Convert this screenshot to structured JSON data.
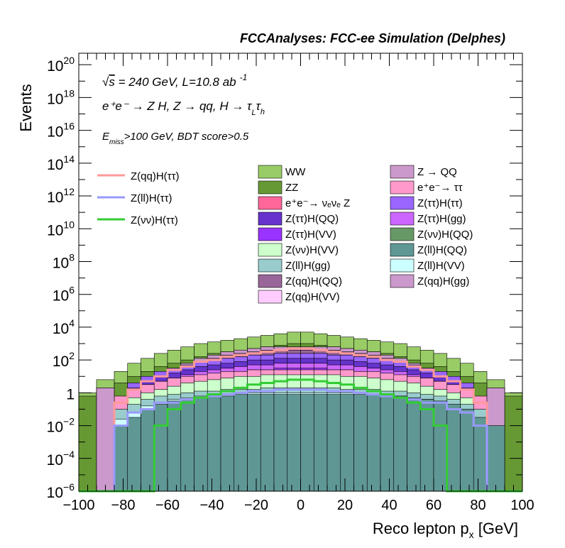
{
  "header": {
    "title": "FCCAnalyses: FCC-ee Simulation (Delphes)"
  },
  "annotations": {
    "energy_prefix": "√",
    "energy_s": "s",
    "energy_text": " = 240 GeV, L=10.8 ab",
    "energy_exp": "-1",
    "process": "e⁺e⁻ → Z H, Z → qq, H → τ",
    "tau_l_sub": "L",
    "tau_char": "τ",
    "tau_h_sub": "h",
    "cut_E": "E",
    "cut_sub": "miss",
    "cut_text": ">100 GeV, BDT score>0.5"
  },
  "chart_data": {
    "type": "histogram",
    "xlabel": "Reco lepton p",
    "xlabel_sub": "x",
    "xlabel_unit": " [GeV]",
    "ylabel": "Events",
    "xlim": [
      -100,
      100
    ],
    "ylim_log10": [
      -6,
      20.7
    ],
    "log_y": true,
    "x_ticks": [
      "−100",
      "−80",
      "−60",
      "−40",
      "−20",
      "0",
      "20",
      "40",
      "60",
      "80",
      "100"
    ],
    "x_tick_values": [
      -100,
      -80,
      -60,
      -40,
      -20,
      0,
      20,
      40,
      60,
      80,
      100
    ],
    "y_ticks": [
      {
        "value": -6,
        "base": "10",
        "exp": "−6"
      },
      {
        "value": -4,
        "base": "10",
        "exp": "−4"
      },
      {
        "value": -2,
        "base": "10",
        "exp": "−2"
      },
      {
        "value": 0,
        "base": "1",
        "exp": ""
      },
      {
        "value": 2,
        "base": "10",
        "exp": "2"
      },
      {
        "value": 4,
        "base": "10",
        "exp": "4"
      },
      {
        "value": 6,
        "base": "10",
        "exp": "6"
      },
      {
        "value": 8,
        "base": "10",
        "exp": "8"
      },
      {
        "value": 10,
        "base": "10",
        "exp": "10"
      },
      {
        "value": 12,
        "base": "10",
        "exp": "12"
      },
      {
        "value": 14,
        "base": "10",
        "exp": "14"
      },
      {
        "value": 16,
        "base": "10",
        "exp": "16"
      },
      {
        "value": 18,
        "base": "10",
        "exp": "18"
      },
      {
        "value": 20,
        "base": "10",
        "exp": "20"
      }
    ],
    "bin_edges": [
      -100,
      -92,
      -84,
      -78,
      -72,
      -66,
      -60,
      -54,
      -48,
      -42,
      -36,
      -30,
      -24,
      -18,
      -12,
      -6,
      0,
      6,
      12,
      18,
      24,
      30,
      36,
      42,
      48,
      54,
      60,
      66,
      72,
      78,
      84,
      92,
      100
    ],
    "stack_backgrounds": [
      {
        "name": "Z(ll)H(QQ)",
        "color": "#5f9795",
        "log10": [
          -6,
          -6,
          -2,
          -1.5,
          -1,
          -0.7,
          -0.5,
          -0.4,
          -0.3,
          -0.2,
          -0.2,
          -0.1,
          -0.1,
          -0.1,
          -0.1,
          -0.1,
          -0.1,
          -0.1,
          -0.1,
          -0.1,
          -0.1,
          -0.1,
          -0.2,
          -0.2,
          -0.3,
          -0.4,
          -0.5,
          -0.7,
          -1,
          -1.5,
          -2,
          -6
        ]
      },
      {
        "name": "e⁺e⁻→ νₑνₑ Z",
        "color": "#ff6699",
        "log10": [
          -6,
          -6,
          -6,
          -6,
          -6,
          -6,
          -6,
          -6,
          -6,
          -6,
          -6,
          -6,
          -0.5,
          -0.4,
          -0.3,
          -0.3,
          -0.3,
          -0.3,
          -0.4,
          -0.5,
          -6,
          -6,
          -6,
          -6,
          -6,
          -6,
          -6,
          -6,
          -6,
          -6,
          -6,
          -6
        ]
      },
      {
        "name": "Z(νν)H(QQ)",
        "color": "#669966",
        "log10": [
          -6,
          -6,
          -6,
          -6,
          -6,
          -6,
          -6,
          -6,
          -6,
          -2,
          -1.5,
          -1.2,
          -1,
          -0.9,
          -0.8,
          -0.8,
          -0.8,
          -0.8,
          -0.9,
          -1,
          -1.2,
          -1.5,
          -2,
          -6,
          -6,
          -6,
          -6,
          -6,
          -6,
          -6,
          -6,
          -6
        ]
      },
      {
        "name": "Z(ll)H(VV)",
        "color": "#ccffff",
        "log10": [
          -6,
          -6,
          -1.6,
          -1.2,
          -0.8,
          -0.6,
          -0.4,
          -0.3,
          -0.2,
          -0.1,
          -0.1,
          0,
          0,
          0,
          0,
          0,
          0,
          0,
          0,
          0,
          0,
          -0.1,
          -0.1,
          -0.2,
          -0.3,
          -0.4,
          -0.6,
          -0.8,
          -1.2,
          -1.6,
          -6,
          -6
        ]
      },
      {
        "name": "Z(ll)H(gg)",
        "color": "#99cccc",
        "log10": [
          -6,
          -6,
          -1,
          -0.7,
          -0.4,
          -0.2,
          -0.1,
          0,
          0.1,
          0.1,
          0.2,
          0.2,
          0.2,
          0.3,
          0.3,
          0.3,
          0.3,
          0.3,
          0.3,
          0.2,
          0.2,
          0.2,
          0.1,
          0.1,
          0,
          -0.1,
          -0.2,
          -0.4,
          -0.7,
          -1,
          -6,
          -6
        ]
      },
      {
        "name": "Z → QQ",
        "color": "#cc99cc",
        "log10": [
          -6,
          0.3,
          -6,
          -6,
          -6,
          -6,
          -6,
          -6,
          -6,
          -6,
          -6,
          -6,
          -6,
          -6,
          -6,
          -2,
          -2,
          -6,
          -6,
          -6,
          -6,
          -6,
          -6,
          -6,
          -6,
          -6,
          -6,
          -6,
          -6,
          -6,
          0.3,
          -6
        ]
      },
      {
        "name": "Z(νν)H(VV)",
        "color": "#ccffcc",
        "log10": [
          -6,
          -6,
          -6,
          -0.3,
          0,
          0.2,
          0.4,
          0.6,
          0.7,
          0.8,
          0.9,
          1,
          1,
          1.1,
          1.1,
          1.1,
          1.1,
          1.1,
          1.1,
          1,
          1,
          0.9,
          0.8,
          0.7,
          0.6,
          0.4,
          0.2,
          0,
          -0.3,
          -6,
          -6,
          -6
        ]
      },
      {
        "name": "e⁺e⁻→ ττ",
        "color": "#ff99cc",
        "log10": [
          -6,
          -6,
          -0.2,
          0.2,
          0.5,
          0.7,
          0.9,
          1,
          1.1,
          1.2,
          1.3,
          1.3,
          1.4,
          1.4,
          1.4,
          1.4,
          1.4,
          1.4,
          1.4,
          1.4,
          1.3,
          1.3,
          1.2,
          1.1,
          1,
          0.9,
          0.7,
          0.5,
          0.2,
          -0.2,
          -6,
          -6
        ]
      },
      {
        "name": "Z(ττ)H(VV)",
        "color": "#9933ff",
        "log10": [
          -6,
          -6,
          -6,
          -0.5,
          0,
          0.3,
          0.6,
          0.8,
          1,
          1.1,
          1.2,
          1.3,
          1.4,
          1.4,
          1.5,
          1.5,
          1.5,
          1.5,
          1.4,
          1.4,
          1.3,
          1.2,
          1.1,
          1,
          0.8,
          0.6,
          0.3,
          0,
          -0.5,
          -6,
          -6,
          -6
        ]
      },
      {
        "name": "Z(ττ)H(gg)",
        "color": "#cc66ff",
        "log10": [
          -6,
          -6,
          -6,
          0,
          0.4,
          0.7,
          0.9,
          1.1,
          1.3,
          1.4,
          1.5,
          1.6,
          1.7,
          1.7,
          1.8,
          1.8,
          1.8,
          1.8,
          1.7,
          1.7,
          1.6,
          1.5,
          1.4,
          1.3,
          1.1,
          0.9,
          0.7,
          0.4,
          0,
          -6,
          -6,
          -6
        ]
      },
      {
        "name": "Z(ττ)H(QQ)",
        "color": "#6633cc",
        "log10": [
          -6,
          -6,
          -6,
          0.3,
          0.7,
          1,
          1.2,
          1.4,
          1.6,
          1.7,
          1.8,
          1.9,
          2,
          2,
          2.1,
          2.1,
          2.1,
          2.1,
          2,
          2,
          1.9,
          1.8,
          1.7,
          1.6,
          1.4,
          1.2,
          1,
          0.7,
          0.3,
          -6,
          -6,
          -6
        ]
      },
      {
        "name": "Z(ττ)H(ττ)",
        "color": "#9966ff",
        "log10": [
          -6,
          -6,
          -6,
          0.6,
          1,
          1.3,
          1.5,
          1.7,
          1.9,
          2,
          2.1,
          2.2,
          2.3,
          2.3,
          2.4,
          2.4,
          2.4,
          2.4,
          2.3,
          2.3,
          2.2,
          2.1,
          2,
          1.9,
          1.7,
          1.5,
          1.3,
          1,
          0.6,
          -6,
          -6,
          -6
        ]
      },
      {
        "name": "Z(qq)H(VV)",
        "color": "#ffccff",
        "log10": [
          -6,
          -6,
          -6,
          -6,
          -6,
          0.5,
          1,
          1.3,
          1.6,
          1.8,
          2,
          2.1,
          2.2,
          2.3,
          2.3,
          2.3,
          2.3,
          2.3,
          2.3,
          2.2,
          2.1,
          2,
          1.8,
          1.6,
          1.3,
          1,
          0.5,
          -6,
          -6,
          -6,
          -6,
          -6
        ]
      },
      {
        "name": "Z(qq)H(QQ)",
        "color": "#996699",
        "log10": [
          -6,
          -6,
          -6,
          -6,
          -6,
          0.8,
          1.3,
          1.6,
          1.9,
          2.1,
          2.3,
          2.4,
          2.5,
          2.6,
          2.6,
          2.6,
          2.6,
          2.6,
          2.6,
          2.5,
          2.4,
          2.3,
          2.1,
          1.9,
          1.6,
          1.3,
          0.8,
          -6,
          -6,
          -6,
          -6,
          -6
        ]
      },
      {
        "name": "Z(qq)H(gg)",
        "color": "#cc99cc",
        "log10": [
          -6,
          -6,
          -6,
          -6,
          -6,
          1,
          1.5,
          1.8,
          2.1,
          2.3,
          2.5,
          2.6,
          2.7,
          2.8,
          2.8,
          2.8,
          2.8,
          2.8,
          2.8,
          2.7,
          2.6,
          2.5,
          2.3,
          2.1,
          1.8,
          1.5,
          1,
          -6,
          -6,
          -6,
          -6,
          -6
        ]
      },
      {
        "name": "ZZ",
        "color": "#669933",
        "log10": [
          -0.2,
          0.3,
          0.6,
          1,
          1.3,
          1.6,
          1.8,
          2,
          2.2,
          2.4,
          2.5,
          2.6,
          2.7,
          2.8,
          2.9,
          3,
          3,
          2.9,
          2.8,
          2.7,
          2.6,
          2.5,
          2.4,
          2.2,
          2,
          1.8,
          1.6,
          1.3,
          1,
          0.6,
          0.3,
          -0.2
        ]
      },
      {
        "name": "WW",
        "color": "#99cc66",
        "log10": [
          0,
          0.8,
          1.3,
          1.8,
          2.1,
          2.4,
          2.6,
          2.8,
          3,
          3.1,
          3.2,
          3.3,
          3.4,
          3.5,
          3.6,
          3.7,
          3.7,
          3.6,
          3.5,
          3.4,
          3.3,
          3.2,
          3.1,
          3,
          2.8,
          2.6,
          2.4,
          2.1,
          1.8,
          1.3,
          0.8,
          0
        ]
      }
    ],
    "signals": [
      {
        "name": "Z(qq)H(ττ)",
        "color": "#ff9999",
        "log10": [
          -6,
          -6,
          -0.6,
          0.2,
          0.7,
          1,
          1.4,
          1.6,
          1.9,
          2,
          2.2,
          2.3,
          2.4,
          2.5,
          2.6,
          2.7,
          2.7,
          2.6,
          2.5,
          2.4,
          2.3,
          2.2,
          2,
          1.9,
          1.6,
          1.4,
          1,
          0.7,
          0.2,
          -0.6,
          -6,
          -6
        ]
      },
      {
        "name": "Z(ll)H(ττ)",
        "color": "#9999ff",
        "log10": [
          -6,
          -6,
          -2,
          -1.2,
          -1,
          -0.6,
          -0.6,
          -0.4,
          -0.3,
          -0.2,
          -0.1,
          0,
          0.1,
          0.1,
          0.2,
          0.2,
          0.2,
          0.2,
          0.1,
          0.1,
          0,
          -0.1,
          -0.2,
          -0.3,
          -0.4,
          -0.6,
          -0.6,
          -1,
          -1.2,
          -2,
          -6,
          -6
        ]
      },
      {
        "name": "Z(νν)H(ττ)",
        "color": "#33cc33",
        "log10": [
          -6,
          -6,
          -6,
          -6,
          -6,
          -2,
          -1,
          -0.6,
          -0.3,
          -0.1,
          0.1,
          0.3,
          0.5,
          0.6,
          0.7,
          0.8,
          0.8,
          0.7,
          0.6,
          0.5,
          0.3,
          0.1,
          -0.1,
          -0.3,
          -0.6,
          -1,
          -2,
          -6,
          -6,
          -6,
          -6,
          -6
        ]
      }
    ],
    "legend_signals": [
      "Z(qq)H(ττ)",
      "Z(ll)H(ττ)",
      "Z(νν)H(ττ)"
    ],
    "legend_col1": [
      "WW",
      "ZZ",
      "e⁺e⁻→ νₑνₑ Z",
      "Z(ττ)H(QQ)",
      "Z(ττ)H(VV)",
      "Z(νν)H(VV)",
      "Z(ll)H(gg)",
      "Z(qq)H(QQ)",
      "Z(qq)H(VV)"
    ],
    "legend_col2": [
      "Z → QQ",
      "e⁺e⁻→ ττ",
      "Z(ττ)H(ττ)",
      "Z(ττ)H(gg)",
      "Z(νν)H(QQ)",
      "Z(ll)H(QQ)",
      "Z(ll)H(VV)",
      "Z(qq)H(gg)"
    ]
  }
}
